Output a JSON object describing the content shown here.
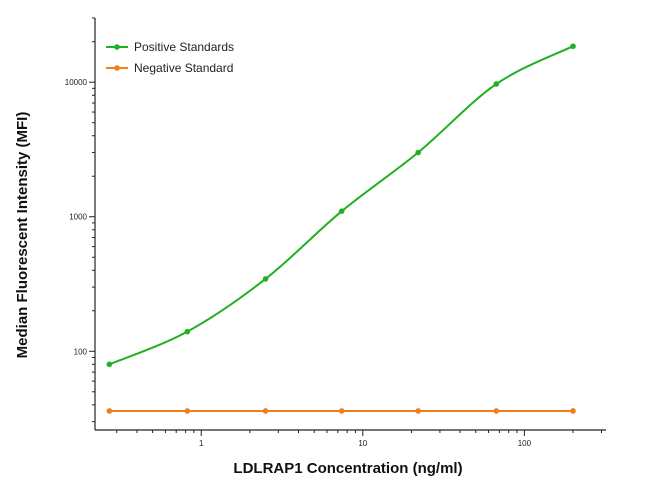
{
  "chart_data": {
    "type": "line",
    "title": "",
    "xlabel": "LDLRAP1 Concentration (ng/ml)",
    "ylabel": "Median  Fluorescent Intensity  (MFI)",
    "x_scale": "log",
    "y_scale": "log",
    "xlim": [
      0.22,
      320
    ],
    "ylim": [
      26,
      30000
    ],
    "x_ticks": [
      1,
      10,
      100
    ],
    "x_tick_labels": [
      "1",
      "10",
      "100"
    ],
    "y_ticks": [
      100,
      1000,
      10000
    ],
    "y_tick_labels": [
      "100",
      "1000",
      "10000"
    ],
    "grid": false,
    "legend_position": "top-left",
    "series": [
      {
        "name": "Positive Standards",
        "color": "#22b022",
        "x": [
          0.27,
          0.82,
          2.5,
          7.4,
          22,
          67,
          200
        ],
        "y": [
          80,
          140,
          345,
          1100,
          3000,
          9700,
          18500
        ],
        "fit": "smooth-curve"
      },
      {
        "name": "Negative Standard",
        "color": "#f07f1a",
        "x": [
          0.27,
          0.82,
          2.5,
          7.4,
          22,
          67,
          200
        ],
        "y": [
          36,
          36,
          36,
          36,
          36,
          36,
          36
        ],
        "fit": "line"
      }
    ]
  }
}
